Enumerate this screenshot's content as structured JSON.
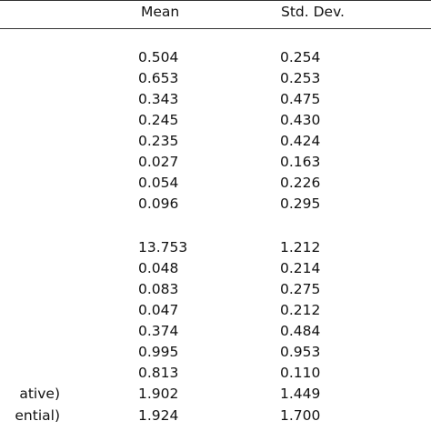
{
  "table": {
    "headers": {
      "mean": "Mean",
      "std_dev": "Std. Dev."
    },
    "rows": [
      {
        "label": "",
        "mean": "0.504",
        "std_dev": "0.254"
      },
      {
        "label": "",
        "mean": "0.653",
        "std_dev": "0.253"
      },
      {
        "label": "",
        "mean": "0.343",
        "std_dev": "0.475"
      },
      {
        "label": "",
        "mean": "0.245",
        "std_dev": "0.430"
      },
      {
        "label": "",
        "mean": "0.235",
        "std_dev": "0.424"
      },
      {
        "label": "",
        "mean": "0.027",
        "std_dev": "0.163"
      },
      {
        "label": "",
        "mean": "0.054",
        "std_dev": "0.226"
      },
      {
        "label": "",
        "mean": "0.096",
        "std_dev": "0.295"
      },
      {
        "label": "",
        "mean": "13.753",
        "std_dev": "1.212"
      },
      {
        "label": "",
        "mean": "0.048",
        "std_dev": "0.214"
      },
      {
        "label": "",
        "mean": "0.083",
        "std_dev": "0.275"
      },
      {
        "label": "",
        "mean": "0.047",
        "std_dev": "0.212"
      },
      {
        "label": "",
        "mean": "0.374",
        "std_dev": "0.484"
      },
      {
        "label": "",
        "mean": "0.995",
        "std_dev": "0.953"
      },
      {
        "label": "",
        "mean": "0.813",
        "std_dev": "0.110"
      },
      {
        "label": "ative)",
        "mean": "1.902",
        "std_dev": "1.449"
      },
      {
        "label": "ential)",
        "mean": "1.924",
        "std_dev": "1.700"
      }
    ]
  }
}
